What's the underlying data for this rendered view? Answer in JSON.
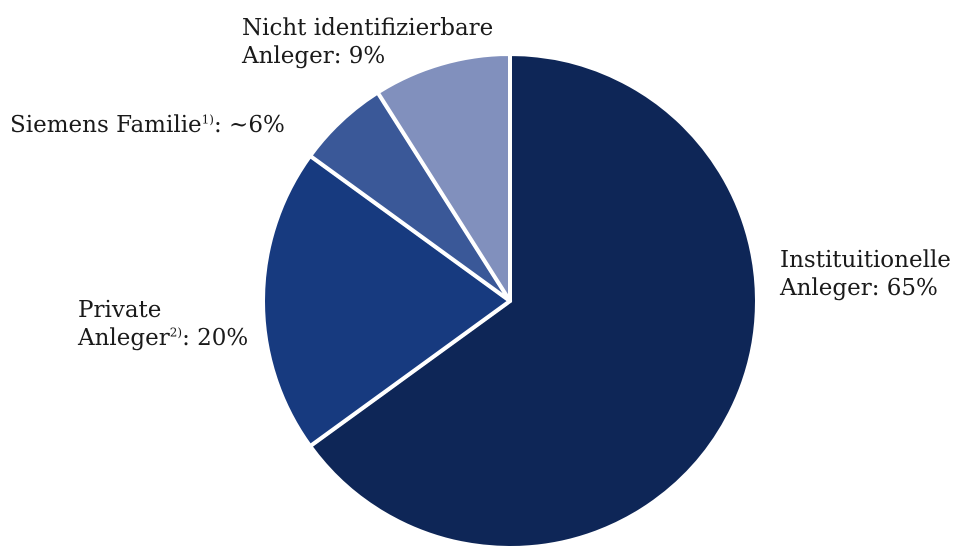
{
  "chart_data": {
    "type": "pie",
    "start_angle_deg": 0,
    "direction": "clockwise",
    "slices": [
      {
        "key": "institutionelle",
        "value": 65,
        "color": "#0e2657",
        "label_lines": [
          "Instituitionelle",
          "Anleger:"
        ],
        "sup": "",
        "value_text": "65%"
      },
      {
        "key": "private",
        "value": 20,
        "color": "#173a7f",
        "label_lines": [
          "Private",
          "Anleger"
        ],
        "sup": "2)",
        "value_text": ": 20%"
      },
      {
        "key": "siemens",
        "value": 6,
        "color": "#3a5898",
        "label_lines": [
          "Siemens Familie"
        ],
        "sup": "1)",
        "value_text": ": ~6%"
      },
      {
        "key": "nicht",
        "value": 9,
        "color": "#8190bd",
        "label_lines": [
          "Nicht identifizierbare",
          "Anleger:"
        ],
        "sup": "",
        "value_text": "9%"
      }
    ]
  }
}
